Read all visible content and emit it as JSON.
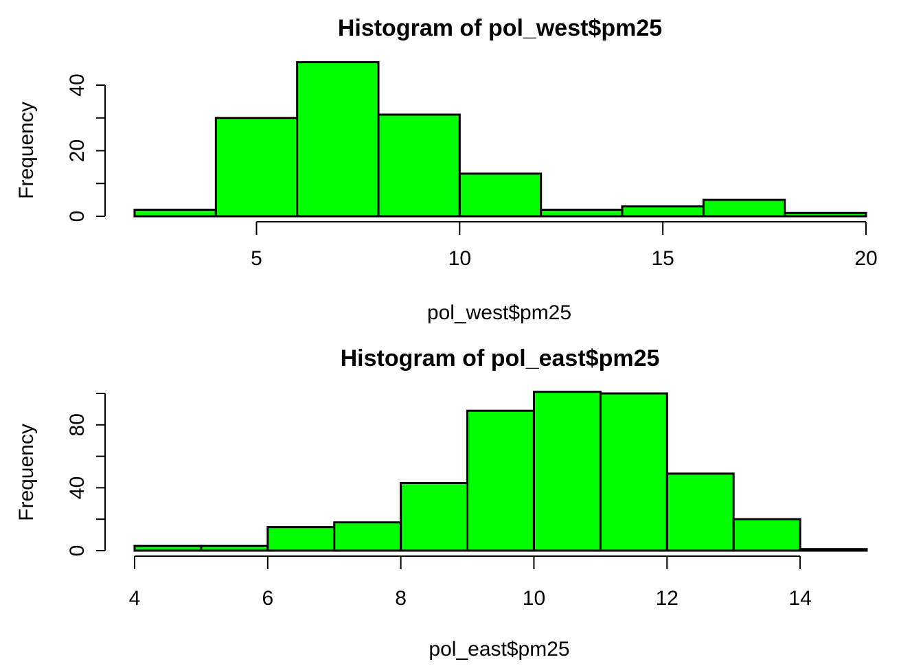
{
  "page": {
    "background": "#ffffff"
  },
  "chart_data": [
    {
      "type": "bar",
      "subtype": "histogram",
      "title": "Histogram of pol_west$pm25",
      "xlabel": "pol_west$pm25",
      "ylabel": "Frequency",
      "bin_edges": [
        2,
        4,
        6,
        8,
        10,
        12,
        14,
        16,
        18,
        20
      ],
      "counts": [
        2,
        30,
        47,
        31,
        13,
        2,
        3,
        5,
        1
      ],
      "x_ticks": [
        5,
        10,
        15,
        20
      ],
      "y_ticks": [
        0,
        10,
        20,
        30,
        40
      ],
      "y_labeled_ticks": [
        0,
        20,
        40
      ],
      "xlim": [
        2,
        20
      ],
      "ylim": [
        0,
        47
      ],
      "grid": false,
      "legend": "none",
      "bar_fill": "#00FF00",
      "bar_stroke": "#000000",
      "axis_color": "#000000",
      "background": "#ffffff"
    },
    {
      "type": "bar",
      "subtype": "histogram",
      "title": "Histogram of pol_east$pm25",
      "xlabel": "pol_east$pm25",
      "ylabel": "Frequency",
      "bin_edges": [
        4,
        5,
        6,
        7,
        8,
        9,
        10,
        11,
        12,
        13,
        14,
        15
      ],
      "counts": [
        3,
        3,
        15,
        18,
        43,
        89,
        101,
        100,
        49,
        20,
        1
      ],
      "x_ticks": [
        4,
        6,
        8,
        10,
        12,
        14
      ],
      "y_ticks": [
        0,
        20,
        40,
        60,
        80,
        100
      ],
      "y_labeled_ticks": [
        0,
        40,
        80
      ],
      "xlim": [
        4,
        15
      ],
      "ylim": [
        0,
        101
      ],
      "grid": false,
      "legend": "none",
      "bar_fill": "#00FF00",
      "bar_stroke": "#000000",
      "axis_color": "#000000",
      "background": "#ffffff"
    }
  ]
}
